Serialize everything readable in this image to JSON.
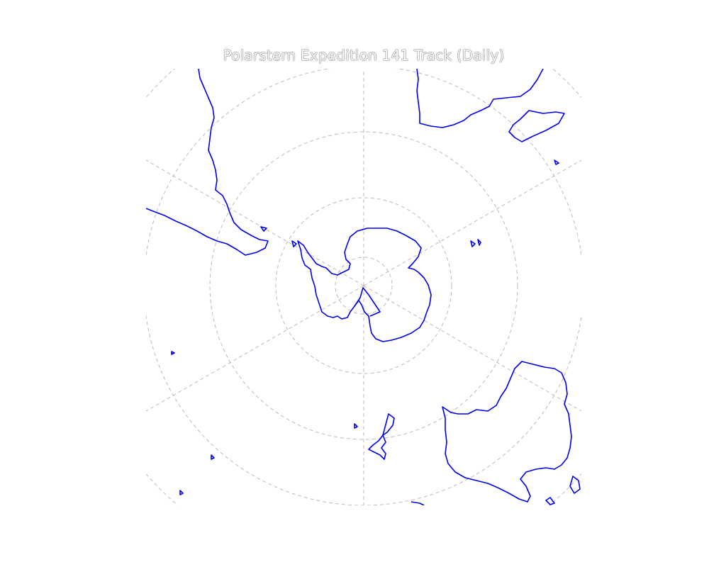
{
  "map": {
    "title": "Polarstern Expedition 141 Track (Daily)",
    "projection": "south-polar stereographic",
    "graticule": {
      "style": "dashed",
      "color": "#bbbbbb"
    },
    "coastline_color": "#0000ff",
    "features": [
      "Antarctica",
      "South America",
      "Africa",
      "Madagascar",
      "Australia",
      "New Zealand"
    ]
  }
}
